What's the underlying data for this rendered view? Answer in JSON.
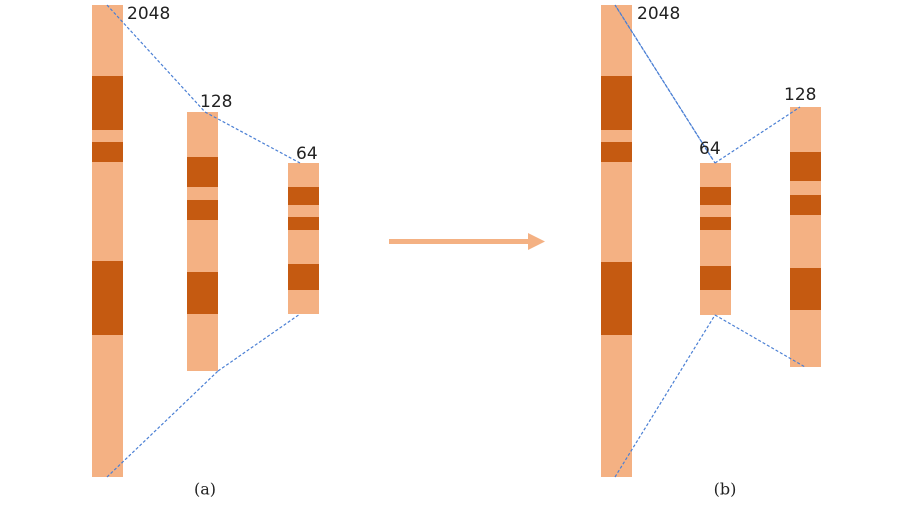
{
  "panels": [
    {
      "caption": "(a)",
      "bars": [
        {
          "label": "2048"
        },
        {
          "label": "128"
        },
        {
          "label": "64"
        }
      ]
    },
    {
      "caption": "(b)",
      "bars": [
        {
          "label": "2048"
        },
        {
          "label": "64"
        },
        {
          "label": "128"
        }
      ]
    }
  ]
}
